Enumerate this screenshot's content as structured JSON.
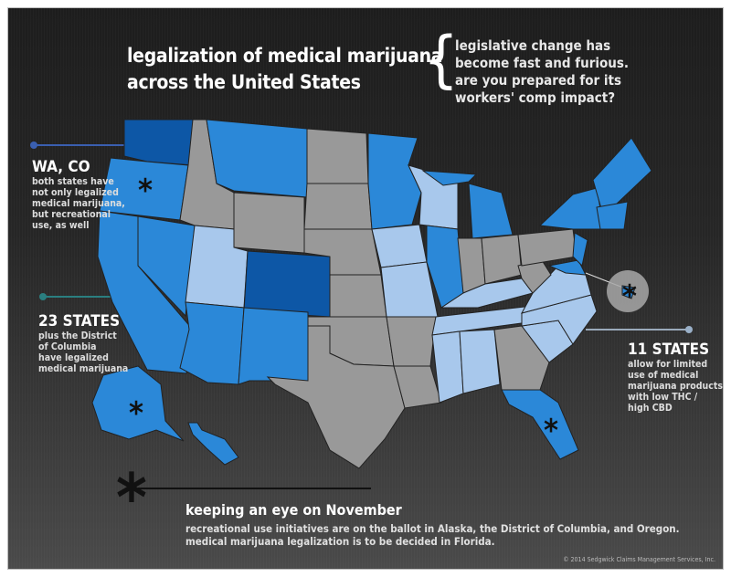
{
  "title": {
    "line1": "legalization of medical marijuana",
    "line2": "across the United States"
  },
  "subtitle": {
    "brace": "{",
    "line1": "legislative change has",
    "line2": "become fast and furious.",
    "line3": "are you prepared for its",
    "line4": "workers' comp impact?"
  },
  "legend": {
    "wa_co": {
      "heading": "WA, CO",
      "lines": [
        "both states have",
        "not only legalized",
        "medical marijuana,",
        "but recreational",
        "use, as well"
      ],
      "color": "#0d57a6"
    },
    "states_23": {
      "heading": "23 STATES",
      "lines": [
        "plus the District",
        "of Columbia",
        "have legalized",
        "medical marijuana"
      ],
      "color": "#2b88d8"
    },
    "states_11": {
      "heading": "11 STATES",
      "lines": [
        "allow for limited",
        "use of medical",
        "marijuana products",
        "with low THC /",
        "high CBD"
      ],
      "color": "#a8c8ec"
    }
  },
  "november": {
    "asterisk": "*",
    "heading": "keeping an eye on November",
    "line1": "recreational use initiatives are on the ballot in Alaska, the District of Columbia, and Oregon.",
    "line2": "medical marijuana legalization is to be decided in Florida."
  },
  "copyright": "© 2014 Sedgwick Claims Management Services, Inc.",
  "map_marker": "*"
}
